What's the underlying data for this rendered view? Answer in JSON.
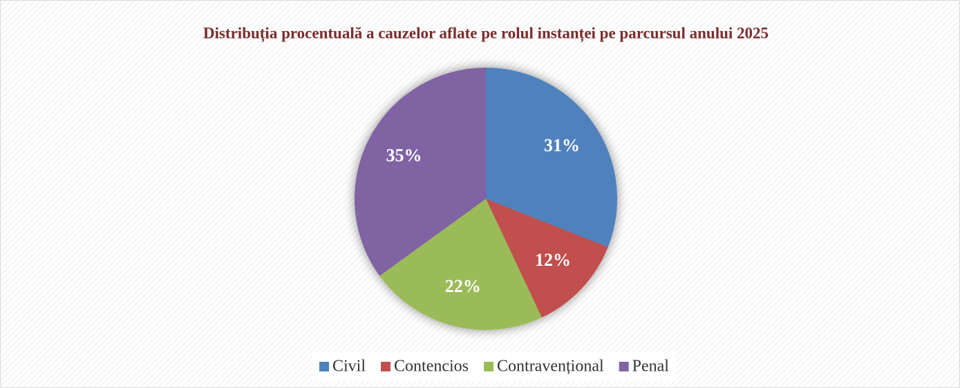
{
  "chart_data": {
    "type": "pie",
    "title": "Distribuția procentuală a cauzelor aflate pe rolul instanței pe parcursul anului 2025",
    "categories": [
      "Civil",
      "Contencios",
      "Contravențional",
      "Penal"
    ],
    "values": [
      31,
      12,
      22,
      35
    ],
    "value_labels": [
      "31%",
      "12%",
      "22%",
      "35%"
    ],
    "colors": [
      "#4f81bd",
      "#c0504d",
      "#9bbb59",
      "#8064a2"
    ],
    "legend": "bottom"
  }
}
